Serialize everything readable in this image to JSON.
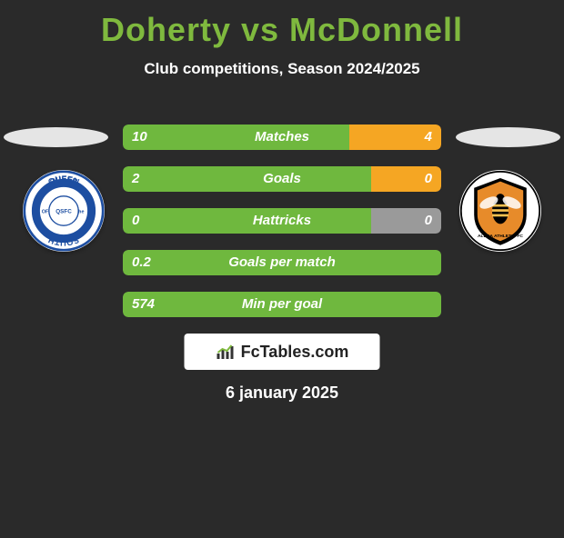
{
  "title": "Doherty vs McDonnell",
  "subtitle": "Club competitions, Season 2024/2025",
  "date": "6 january 2025",
  "brand": "FcTables.com",
  "colors": {
    "title": "#7fb93e",
    "left_bar": "#6fb83e",
    "right_bar_orange": "#f5a623",
    "right_bar_gray": "#9a9a9a",
    "background": "#2a2a2a",
    "text": "#ffffff"
  },
  "bars": [
    {
      "label": "Matches",
      "left": "10",
      "right": "4",
      "left_pct": 71,
      "right_color": "#f5a623"
    },
    {
      "label": "Goals",
      "left": "2",
      "right": "0",
      "left_pct": 78,
      "right_color": "#f5a623"
    },
    {
      "label": "Hattricks",
      "left": "0",
      "right": "0",
      "left_pct": 78,
      "right_color": "#9a9a9a"
    },
    {
      "label": "Goals per match",
      "left": "0.2",
      "right": "",
      "left_pct": 100,
      "right_color": "#9a9a9a"
    },
    {
      "label": "Min per goal",
      "left": "574",
      "right": "",
      "left_pct": 100,
      "right_color": "#9a9a9a"
    }
  ],
  "clubs": {
    "left": {
      "name": "Queen of the South",
      "primary": "#1d4ea1",
      "secondary": "#ffffff"
    },
    "right": {
      "name": "Alloa Athletic FC",
      "primary": "#e78b2a",
      "secondary": "#000000"
    }
  }
}
